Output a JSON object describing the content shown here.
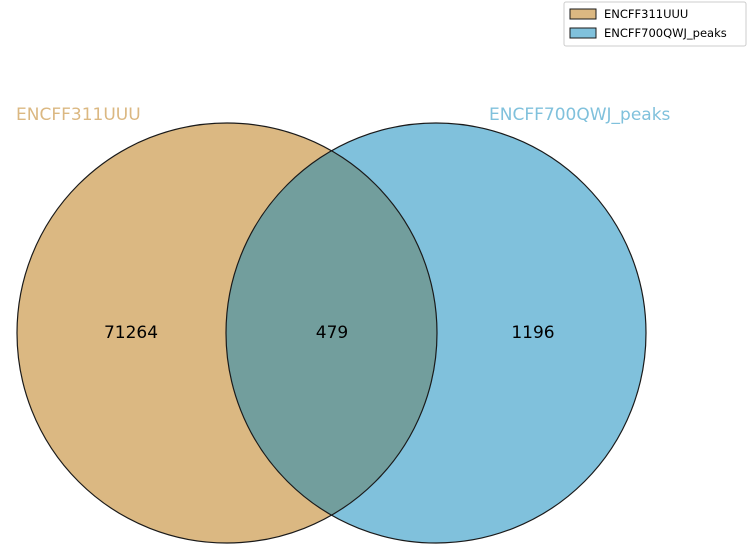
{
  "venn": {
    "sets": [
      {
        "name": "ENCFF311UUU",
        "color": "#dbb882"
      },
      {
        "name": "ENCFF700QWJ_peaks",
        "color": "#80c1dc"
      }
    ],
    "intersection_color": "#729e9d",
    "counts": {
      "only_a": "71264",
      "both": "479",
      "only_b": "1196"
    }
  },
  "legend": {
    "items": [
      {
        "label": "ENCFF311UUU",
        "color": "#dbb882"
      },
      {
        "label": "ENCFF700QWJ_peaks",
        "color": "#80c1dc"
      }
    ]
  }
}
